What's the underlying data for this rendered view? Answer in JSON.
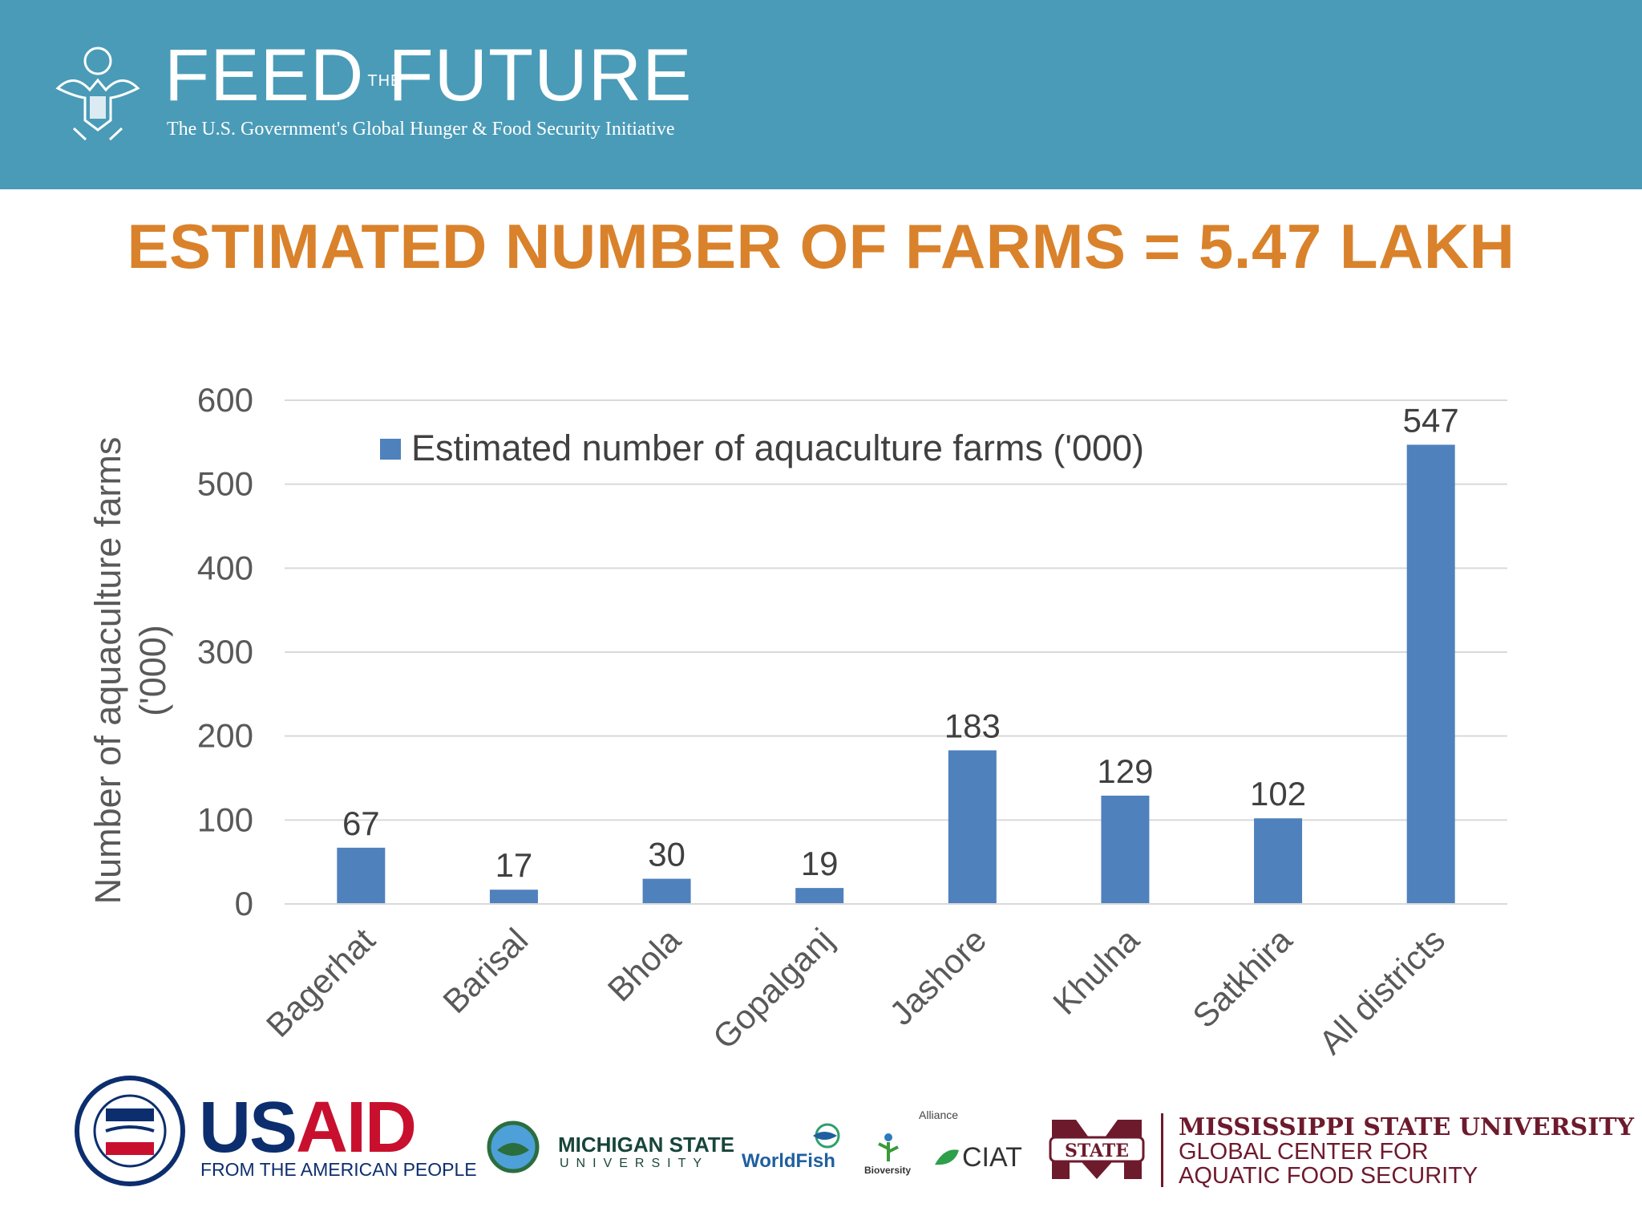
{
  "header": {
    "brand_left": "FEED",
    "brand_the": "THE",
    "brand_right": "FUTURE",
    "tagline": "The U.S. Government's Global Hunger & Food Security Initiative",
    "color": "#4a9bb7"
  },
  "slide_title": "ESTIMATED NUMBER OF FARMS = 5.47 LAKH",
  "chart_data": {
    "type": "bar",
    "title": "",
    "ylabel_line1": "Number of aquaculture farms",
    "ylabel_line2": "('000)",
    "xlabel": "",
    "categories": [
      "Bagerhat",
      "Barisal",
      "Bhola",
      "Gopalganj",
      "Jashore",
      "Khulna",
      "Satkhira",
      "All districts"
    ],
    "series": [
      {
        "name": "Estimated number of aquaculture farms ('000)",
        "values": [
          67,
          17,
          30,
          19,
          183,
          129,
          102,
          547
        ],
        "color": "#4f81bd"
      }
    ],
    "ylim": [
      0,
      600
    ],
    "yticks": [
      0,
      100,
      200,
      300,
      400,
      500,
      600
    ],
    "grid": true,
    "legend_position": "top"
  },
  "footer": {
    "usaid_us": "US",
    "usaid_aid": "AID",
    "usaid_sub": "FROM THE AMERICAN PEOPLE",
    "michigan_1": "MICHIGAN STATE",
    "michigan_2": "UNIVERSITY",
    "worldfish": "WorldFish",
    "alliance": "Alliance",
    "bioversity": "Bioversity",
    "ciat": "CIAT",
    "mstate_badge": "STATE",
    "mstate_1": "MISSISSIPPI STATE UNIVERSITY",
    "mstate_2": "GLOBAL CENTER FOR",
    "mstate_3": "AQUATIC FOOD SECURITY"
  }
}
